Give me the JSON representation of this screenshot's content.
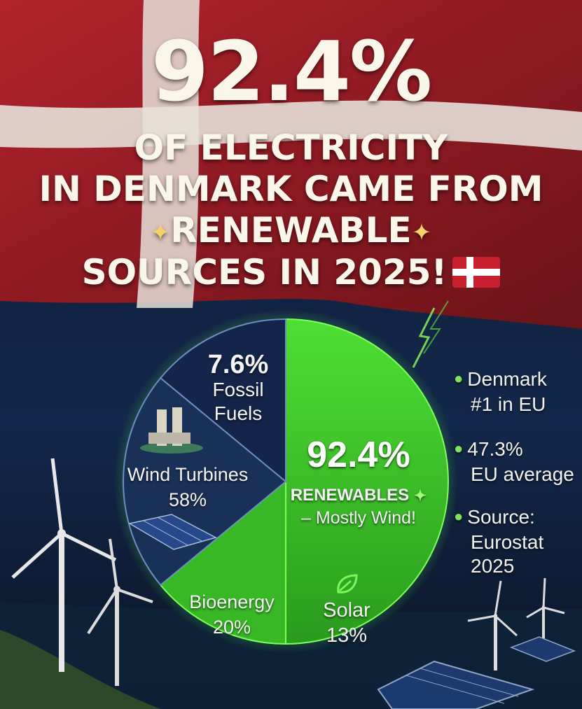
{
  "headline": {
    "big_value": "92.4%",
    "line1": "OF ELECTRICITY",
    "line2": "IN DENMARK CAME FROM",
    "line3": "RENEWABLE",
    "line4": "SOURCES IN 2025!",
    "sparkle_icon": "sparkles-icon",
    "flag_icon": "denmark-flag-icon"
  },
  "pie": {
    "segments": [
      {
        "value_label": "7.6%",
        "name": "Fossil Fuels",
        "percent": 7.6
      },
      {
        "value_label": "58%",
        "name": "Wind Turbines",
        "percent": 58
      },
      {
        "value_label": "20%",
        "name": "Bioenergy",
        "percent": 20
      },
      {
        "value_label": "13%",
        "name": "Solar",
        "percent": 13
      }
    ],
    "renewables_value": "92.4%",
    "renewables_label": "RENEWABLES",
    "renewables_sub": "– Mostly Wind!",
    "renewables_percent": 92.4,
    "fossil_value": "7.6%",
    "fossil_line1": "Fossil",
    "fossil_line2": "Fuels",
    "wind_line1": "Wind Turbines",
    "wind_line2": "58%",
    "bio_line1": "Bioenergy",
    "bio_line2": "20%",
    "solar_line1": "Solar",
    "solar_line2": "13%",
    "solar_icon": "leaf-icon",
    "colors": {
      "renewable": "#3fd12a",
      "fossil": "#14254a",
      "dark_segment": "#1a3157"
    }
  },
  "sidebar": {
    "item1_line1": "Denmark",
    "item1_line2": "#1 in EU",
    "item2_line1": "47.3%",
    "item2_line2": "EU average",
    "item3_line1": "Source:",
    "item3_line2": "Eurostat",
    "item3_line3": "2025"
  }
}
